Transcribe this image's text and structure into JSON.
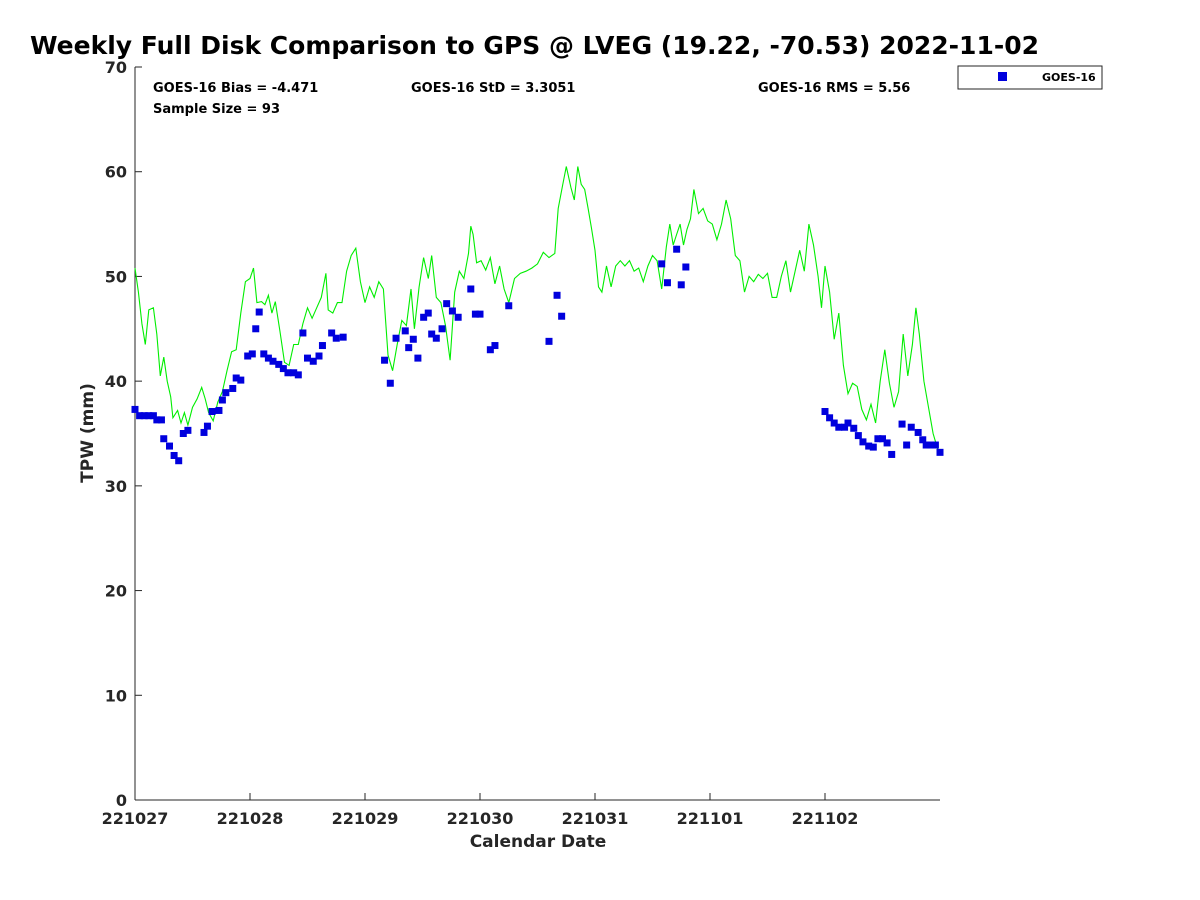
{
  "chart_data": {
    "type": "scatter",
    "title": "Weekly Full Disk Comparison to GPS @ LVEG (19.22, -70.53) 2022-11-02",
    "xlabel": "Calendar Date",
    "ylabel": "TPW (mm)",
    "xlim": [
      0,
      7
    ],
    "ylim": [
      0,
      70
    ],
    "x_ticks": [
      {
        "value": 0,
        "label": "221027"
      },
      {
        "value": 1,
        "label": "221028"
      },
      {
        "value": 2,
        "label": "221029"
      },
      {
        "value": 3,
        "label": "221030"
      },
      {
        "value": 4,
        "label": "221031"
      },
      {
        "value": 5,
        "label": "221101"
      },
      {
        "value": 6,
        "label": "221102"
      }
    ],
    "y_ticks": [
      0,
      10,
      20,
      30,
      40,
      50,
      60,
      70
    ],
    "stats": {
      "bias": "GOES-16 Bias = -4.471",
      "std": "GOES-16 StD = 3.3051",
      "rms": "GOES-16 RMS = 5.56",
      "sample": "Sample Size = 93"
    },
    "legend": {
      "label": "GOES-16",
      "placement": "top-right, outside axes"
    },
    "colors": {
      "goes": "#0000dd",
      "gps": "#00ee00"
    },
    "series": [
      {
        "name": "GOES-16",
        "marker": "square",
        "points": [
          [
            0.0,
            37.3
          ],
          [
            0.04,
            36.7
          ],
          [
            0.08,
            36.7
          ],
          [
            0.12,
            36.7
          ],
          [
            0.16,
            36.7
          ],
          [
            0.19,
            36.3
          ],
          [
            0.23,
            36.3
          ],
          [
            0.25,
            34.5
          ],
          [
            0.3,
            33.8
          ],
          [
            0.34,
            32.9
          ],
          [
            0.38,
            32.4
          ],
          [
            0.42,
            35.0
          ],
          [
            0.46,
            35.3
          ],
          [
            0.6,
            35.1
          ],
          [
            0.63,
            35.7
          ],
          [
            0.67,
            37.1
          ],
          [
            0.73,
            37.2
          ],
          [
            0.76,
            38.2
          ],
          [
            0.79,
            38.9
          ],
          [
            0.85,
            39.3
          ],
          [
            0.88,
            40.3
          ],
          [
            0.92,
            40.1
          ],
          [
            0.98,
            42.4
          ],
          [
            1.02,
            42.6
          ],
          [
            1.05,
            45.0
          ],
          [
            1.08,
            46.6
          ],
          [
            1.12,
            42.6
          ],
          [
            1.16,
            42.2
          ],
          [
            1.2,
            41.9
          ],
          [
            1.25,
            41.6
          ],
          [
            1.29,
            41.2
          ],
          [
            1.33,
            40.8
          ],
          [
            1.38,
            40.8
          ],
          [
            1.42,
            40.6
          ],
          [
            1.46,
            44.6
          ],
          [
            1.5,
            42.2
          ],
          [
            1.55,
            41.9
          ],
          [
            1.6,
            42.4
          ],
          [
            1.63,
            43.4
          ],
          [
            1.71,
            44.6
          ],
          [
            1.75,
            44.1
          ],
          [
            1.81,
            44.2
          ],
          [
            2.17,
            42.0
          ],
          [
            2.22,
            39.8
          ],
          [
            2.27,
            44.1
          ],
          [
            2.35,
            44.8
          ],
          [
            2.38,
            43.2
          ],
          [
            2.42,
            44.0
          ],
          [
            2.46,
            42.2
          ],
          [
            2.51,
            46.1
          ],
          [
            2.55,
            46.5
          ],
          [
            2.58,
            44.5
          ],
          [
            2.62,
            44.1
          ],
          [
            2.67,
            45.0
          ],
          [
            2.71,
            47.4
          ],
          [
            2.76,
            46.7
          ],
          [
            2.81,
            46.1
          ],
          [
            2.92,
            48.8
          ],
          [
            2.96,
            46.4
          ],
          [
            3.0,
            46.4
          ],
          [
            3.09,
            43.0
          ],
          [
            3.13,
            43.4
          ],
          [
            3.25,
            47.2
          ],
          [
            3.6,
            43.8
          ],
          [
            3.67,
            48.2
          ],
          [
            3.71,
            46.2
          ],
          [
            4.58,
            51.2
          ],
          [
            4.63,
            49.4
          ],
          [
            4.71,
            52.6
          ],
          [
            4.75,
            49.2
          ],
          [
            4.79,
            50.9
          ],
          [
            6.0,
            37.1
          ],
          [
            6.04,
            36.5
          ],
          [
            6.08,
            36.0
          ],
          [
            6.12,
            35.6
          ],
          [
            6.17,
            35.6
          ],
          [
            6.2,
            36.0
          ],
          [
            6.25,
            35.5
          ],
          [
            6.29,
            34.8
          ],
          [
            6.33,
            34.2
          ],
          [
            6.38,
            33.8
          ],
          [
            6.42,
            33.7
          ],
          [
            6.46,
            34.5
          ],
          [
            6.5,
            34.5
          ],
          [
            6.54,
            34.1
          ],
          [
            6.58,
            33.0
          ],
          [
            6.67,
            35.9
          ],
          [
            6.71,
            33.9
          ],
          [
            6.75,
            35.6
          ],
          [
            6.81,
            35.1
          ],
          [
            6.85,
            34.4
          ],
          [
            6.88,
            33.9
          ],
          [
            6.92,
            33.9
          ],
          [
            6.96,
            33.9
          ],
          [
            7.0,
            33.2
          ]
        ]
      },
      {
        "name": "GPS",
        "marker": "line",
        "points": [
          [
            0.0,
            50.8
          ],
          [
            0.03,
            48.5
          ],
          [
            0.06,
            45.5
          ],
          [
            0.09,
            43.5
          ],
          [
            0.12,
            46.8
          ],
          [
            0.16,
            47.0
          ],
          [
            0.19,
            44.5
          ],
          [
            0.22,
            40.5
          ],
          [
            0.25,
            42.3
          ],
          [
            0.28,
            40.0
          ],
          [
            0.31,
            38.5
          ],
          [
            0.33,
            36.5
          ],
          [
            0.37,
            37.2
          ],
          [
            0.4,
            36.0
          ],
          [
            0.43,
            37.0
          ],
          [
            0.46,
            35.8
          ],
          [
            0.5,
            37.5
          ],
          [
            0.54,
            38.3
          ],
          [
            0.58,
            39.4
          ],
          [
            0.61,
            38.3
          ],
          [
            0.64,
            37.0
          ],
          [
            0.68,
            36.2
          ],
          [
            0.72,
            38.0
          ],
          [
            0.76,
            39.0
          ],
          [
            0.8,
            41.0
          ],
          [
            0.84,
            42.8
          ],
          [
            0.88,
            43.0
          ],
          [
            0.92,
            46.5
          ],
          [
            0.96,
            49.5
          ],
          [
            1.0,
            49.8
          ],
          [
            1.03,
            50.8
          ],
          [
            1.06,
            47.5
          ],
          [
            1.1,
            47.6
          ],
          [
            1.13,
            47.3
          ],
          [
            1.16,
            48.2
          ],
          [
            1.19,
            46.5
          ],
          [
            1.22,
            47.6
          ],
          [
            1.26,
            44.8
          ],
          [
            1.3,
            41.8
          ],
          [
            1.34,
            41.5
          ],
          [
            1.38,
            43.5
          ],
          [
            1.42,
            43.5
          ],
          [
            1.46,
            45.5
          ],
          [
            1.5,
            47.0
          ],
          [
            1.54,
            46.0
          ],
          [
            1.58,
            47.0
          ],
          [
            1.62,
            48.0
          ],
          [
            1.66,
            50.3
          ],
          [
            1.68,
            46.8
          ],
          [
            1.72,
            46.5
          ],
          [
            1.76,
            47.5
          ],
          [
            1.8,
            47.5
          ],
          [
            1.84,
            50.5
          ],
          [
            1.88,
            52.0
          ],
          [
            1.92,
            52.7
          ],
          [
            1.96,
            49.5
          ],
          [
            2.0,
            47.5
          ],
          [
            2.04,
            49.0
          ],
          [
            2.08,
            48.0
          ],
          [
            2.12,
            49.5
          ],
          [
            2.16,
            48.8
          ],
          [
            2.2,
            42.5
          ],
          [
            2.24,
            41.0
          ],
          [
            2.28,
            43.5
          ],
          [
            2.32,
            45.8
          ],
          [
            2.36,
            45.3
          ],
          [
            2.4,
            48.8
          ],
          [
            2.43,
            45.0
          ],
          [
            2.47,
            49.0
          ],
          [
            2.51,
            51.8
          ],
          [
            2.55,
            49.8
          ],
          [
            2.58,
            52.0
          ],
          [
            2.62,
            48.0
          ],
          [
            2.66,
            47.5
          ],
          [
            2.7,
            45.3
          ],
          [
            2.74,
            42.0
          ],
          [
            2.78,
            48.5
          ],
          [
            2.82,
            50.5
          ],
          [
            2.86,
            49.8
          ],
          [
            2.9,
            52.2
          ],
          [
            2.92,
            54.8
          ],
          [
            2.94,
            54.0
          ],
          [
            2.97,
            51.3
          ],
          [
            3.01,
            51.5
          ],
          [
            3.05,
            50.6
          ],
          [
            3.09,
            51.8
          ],
          [
            3.13,
            49.3
          ],
          [
            3.17,
            51.0
          ],
          [
            3.21,
            48.8
          ],
          [
            3.25,
            47.5
          ],
          [
            3.3,
            49.8
          ],
          [
            3.35,
            50.3
          ],
          [
            3.4,
            50.5
          ],
          [
            3.45,
            50.8
          ],
          [
            3.5,
            51.2
          ],
          [
            3.55,
            52.3
          ],
          [
            3.6,
            51.8
          ],
          [
            3.65,
            52.2
          ],
          [
            3.68,
            56.5
          ],
          [
            3.72,
            58.8
          ],
          [
            3.75,
            60.5
          ],
          [
            3.79,
            58.5
          ],
          [
            3.82,
            57.3
          ],
          [
            3.85,
            60.5
          ],
          [
            3.88,
            58.8
          ],
          [
            3.91,
            58.3
          ],
          [
            3.94,
            56.5
          ],
          [
            3.97,
            54.6
          ],
          [
            4.0,
            52.5
          ],
          [
            4.03,
            49.0
          ],
          [
            4.06,
            48.5
          ],
          [
            4.1,
            51.0
          ],
          [
            4.14,
            49.0
          ],
          [
            4.18,
            51.0
          ],
          [
            4.22,
            51.5
          ],
          [
            4.26,
            51.0
          ],
          [
            4.3,
            51.5
          ],
          [
            4.34,
            50.5
          ],
          [
            4.38,
            50.8
          ],
          [
            4.42,
            49.5
          ],
          [
            4.46,
            51.0
          ],
          [
            4.5,
            52.0
          ],
          [
            4.54,
            51.5
          ],
          [
            4.58,
            48.8
          ],
          [
            4.62,
            52.8
          ],
          [
            4.65,
            55.0
          ],
          [
            4.68,
            53.0
          ],
          [
            4.71,
            54.0
          ],
          [
            4.74,
            55.0
          ],
          [
            4.77,
            53.0
          ],
          [
            4.8,
            54.5
          ],
          [
            4.83,
            55.5
          ],
          [
            4.86,
            58.3
          ],
          [
            4.9,
            56.0
          ],
          [
            4.94,
            56.5
          ],
          [
            4.98,
            55.3
          ],
          [
            5.02,
            55.0
          ],
          [
            5.06,
            53.5
          ],
          [
            5.1,
            55.0
          ],
          [
            5.14,
            57.3
          ],
          [
            5.18,
            55.5
          ],
          [
            5.22,
            52.0
          ],
          [
            5.26,
            51.5
          ],
          [
            5.3,
            48.5
          ],
          [
            5.34,
            50.0
          ],
          [
            5.38,
            49.5
          ],
          [
            5.42,
            50.2
          ],
          [
            5.46,
            49.8
          ],
          [
            5.5,
            50.3
          ],
          [
            5.54,
            48.0
          ],
          [
            5.58,
            48.0
          ],
          [
            5.62,
            50.0
          ],
          [
            5.66,
            51.5
          ],
          [
            5.7,
            48.5
          ],
          [
            5.74,
            50.5
          ],
          [
            5.78,
            52.5
          ],
          [
            5.82,
            50.5
          ],
          [
            5.86,
            55.0
          ],
          [
            5.9,
            53.0
          ],
          [
            5.94,
            50.0
          ],
          [
            5.97,
            47.0
          ],
          [
            6.0,
            51.0
          ],
          [
            6.04,
            48.5
          ],
          [
            6.08,
            44.0
          ],
          [
            6.12,
            46.5
          ],
          [
            6.16,
            41.5
          ],
          [
            6.2,
            38.8
          ],
          [
            6.24,
            39.8
          ],
          [
            6.28,
            39.5
          ],
          [
            6.32,
            37.3
          ],
          [
            6.36,
            36.3
          ],
          [
            6.4,
            37.8
          ],
          [
            6.44,
            36.0
          ],
          [
            6.48,
            40.0
          ],
          [
            6.52,
            43.0
          ],
          [
            6.56,
            39.8
          ],
          [
            6.6,
            37.5
          ],
          [
            6.64,
            39.0
          ],
          [
            6.68,
            44.5
          ],
          [
            6.72,
            40.5
          ],
          [
            6.76,
            43.5
          ],
          [
            6.79,
            47.0
          ],
          [
            6.82,
            44.5
          ],
          [
            6.86,
            40.0
          ],
          [
            6.9,
            37.5
          ],
          [
            6.94,
            35.0
          ],
          [
            6.98,
            33.5
          ],
          [
            7.0,
            33.2
          ]
        ]
      }
    ]
  }
}
